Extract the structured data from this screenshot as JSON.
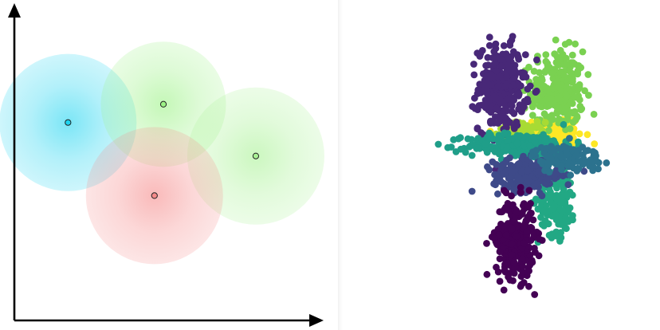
{
  "chart_data": [
    {
      "type": "scatter",
      "title": "",
      "xlabel": "",
      "ylabel": "",
      "grid": false,
      "axes": "arrows",
      "xlim": [
        0,
        100
      ],
      "ylim": [
        0,
        100
      ],
      "clusters": [
        {
          "center": [
            18,
            65
          ],
          "color": "#1fd4f0",
          "radius": 23
        },
        {
          "center": [
            50,
            71
          ],
          "color": "#9cf286",
          "radius": 21
        },
        {
          "center": [
            81,
            54
          ],
          "color": "#a8f294",
          "radius": 23
        },
        {
          "center": [
            47,
            41
          ],
          "color": "#f58a8a",
          "radius": 23
        }
      ]
    },
    {
      "type": "scatter",
      "title": "",
      "xlabel": "",
      "ylabel": "",
      "grid": false,
      "axes": "none",
      "xlim": [
        -10,
        10
      ],
      "ylim": [
        -10,
        10
      ],
      "colormap": "viridis",
      "series": [
        {
          "color": "#fde725",
          "center": [
            2.2,
            1.8
          ],
          "spread": [
            2.1,
            1.2
          ],
          "count": 160
        },
        {
          "color": "#7ad151",
          "center": [
            2.6,
            4.6
          ],
          "spread": [
            1.8,
            2.3
          ],
          "count": 260
        },
        {
          "color": "#a8db34",
          "center": [
            -0.2,
            2.0
          ],
          "spread": [
            1.6,
            0.6
          ],
          "count": 90
        },
        {
          "color": "#482878",
          "center": [
            -1.6,
            4.8
          ],
          "spread": [
            1.6,
            2.4
          ],
          "count": 300
        },
        {
          "color": "#1f9e89",
          "center": [
            -0.2,
            1.2
          ],
          "spread": [
            3.6,
            0.7
          ],
          "count": 260
        },
        {
          "color": "#22a884",
          "center": [
            2.6,
            -2.2
          ],
          "spread": [
            1.3,
            2.0
          ],
          "count": 140
        },
        {
          "color": "#3e4a89",
          "center": [
            0.4,
            -0.6
          ],
          "spread": [
            2.4,
            0.9
          ],
          "count": 230
        },
        {
          "color": "#440154",
          "center": [
            -0.6,
            -4.6
          ],
          "spread": [
            1.3,
            2.2
          ],
          "count": 300
        },
        {
          "color": "#2c728e",
          "center": [
            3.4,
            0.4
          ],
          "spread": [
            2.4,
            0.8
          ],
          "count": 110
        }
      ]
    }
  ]
}
